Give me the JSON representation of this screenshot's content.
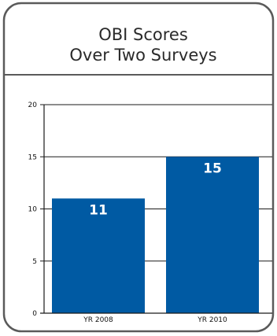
{
  "chart_data": {
    "type": "bar",
    "title_lines": [
      "OBI Scores",
      "Over Two Surveys"
    ],
    "categories": [
      "YR 2008",
      "YR 2010"
    ],
    "values": [
      11,
      15
    ],
    "data_labels": [
      "11",
      "15"
    ],
    "y_ticks": [
      "0",
      "5",
      "10",
      "15",
      "20"
    ],
    "ylim": [
      0,
      20
    ],
    "grid": true,
    "bar_color": "#005aa3",
    "frame_color": "#5a5a5a",
    "xlabel": "",
    "ylabel": ""
  }
}
